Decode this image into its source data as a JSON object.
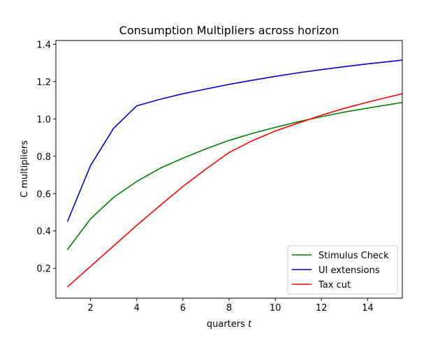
{
  "chart_data": {
    "type": "line",
    "title": "Consumption Multipliers across horizon",
    "xlabel": "quarters t",
    "xlabel_text": "quarters ",
    "xlabel_var": "t",
    "ylabel": "C multipliers",
    "xlim": [
      0.5,
      15.5
    ],
    "ylim": [
      0.04,
      1.42
    ],
    "xticks": [
      2,
      4,
      6,
      8,
      10,
      12,
      14
    ],
    "yticks": [
      0.2,
      0.4,
      0.6,
      0.8,
      1.0,
      1.2,
      1.4
    ],
    "ytick_labels": [
      "0.2",
      "0.4",
      "0.6",
      "0.8",
      "1.0",
      "1.2",
      "1.4"
    ],
    "grid": false,
    "legend_position": "lower-right",
    "x": [
      1,
      2,
      3,
      4,
      5,
      6,
      7,
      8,
      9,
      10,
      11,
      12,
      13,
      14,
      15,
      15.5
    ],
    "series": [
      {
        "name": "Stimulus Check",
        "color": "#008000",
        "values": [
          0.3,
          0.465,
          0.58,
          0.665,
          0.735,
          0.79,
          0.84,
          0.885,
          0.922,
          0.955,
          0.985,
          1.012,
          1.037,
          1.058,
          1.078,
          1.088
        ]
      },
      {
        "name": "UI extensions",
        "color": "#0000cc",
        "values": [
          0.45,
          0.75,
          0.95,
          1.07,
          1.105,
          1.135,
          1.16,
          1.185,
          1.207,
          1.228,
          1.247,
          1.264,
          1.28,
          1.295,
          1.308,
          1.315
        ]
      },
      {
        "name": "Tax cut",
        "color": "#ff0000",
        "values": [
          0.1,
          0.21,
          0.32,
          0.43,
          0.535,
          0.638,
          0.732,
          0.82,
          0.883,
          0.935,
          0.978,
          1.02,
          1.057,
          1.09,
          1.12,
          1.135
        ]
      }
    ]
  }
}
